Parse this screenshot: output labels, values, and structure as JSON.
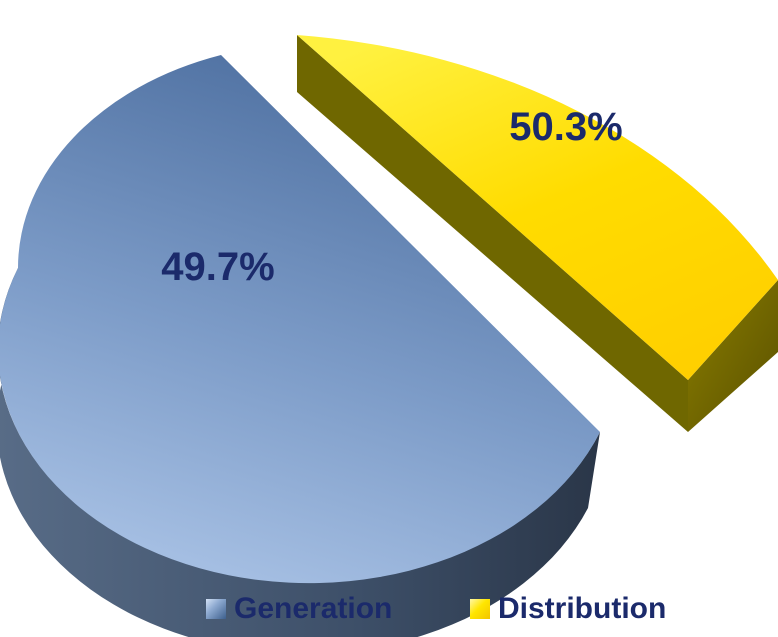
{
  "chart_data": {
    "type": "pie",
    "categories": [
      "Generation",
      "Distribution"
    ],
    "values": [
      49.7,
      50.3
    ],
    "data_labels": [
      "49.7%",
      "50.3%"
    ],
    "legend": {
      "position": "bottom",
      "entries": [
        {
          "label": "Generation",
          "color": "#7f9fca"
        },
        {
          "label": "Distribution",
          "color": "#ffd800"
        }
      ]
    },
    "style": "3d-exploded",
    "colors": {
      "generation": "#7f9fca",
      "distribution": "#ffd800",
      "label_text": "#1b2a6b"
    }
  }
}
